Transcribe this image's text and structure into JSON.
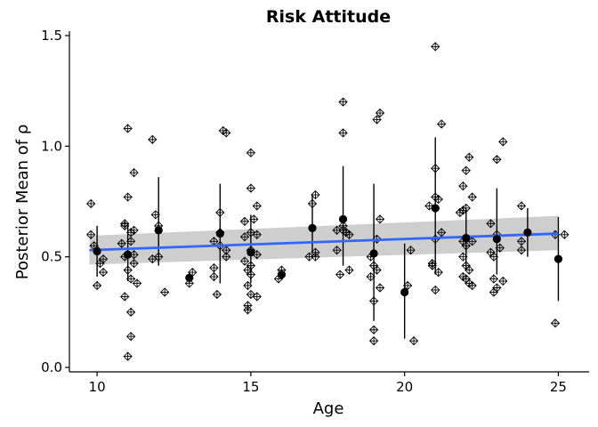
{
  "chart_data": {
    "type": "scatter",
    "title": "Risk Attitude",
    "xlabel": "Age",
    "ylabel": "Posterior Mean of ρ",
    "xlim": [
      9.1,
      26.0
    ],
    "ylim": [
      -0.02,
      1.52
    ],
    "xticks": [
      10,
      15,
      20,
      25
    ],
    "yticks": [
      0.0,
      0.5,
      1.0,
      1.5
    ],
    "xtick_labels": [
      "10",
      "15",
      "20",
      "25"
    ],
    "ytick_labels": [
      "0.0",
      "0.5",
      "1.0",
      "1.5"
    ],
    "grid": false,
    "legend": "none",
    "colors": {
      "trend_line": "#3366ff",
      "confidence_band": "#bdbdbd",
      "points": "#000000",
      "axis": "#000000"
    },
    "individual_points": [
      {
        "x": 9.8,
        "y": 0.74
      },
      {
        "x": 9.8,
        "y": 0.6
      },
      {
        "x": 9.9,
        "y": 0.55
      },
      {
        "x": 10.0,
        "y": 0.53
      },
      {
        "x": 10.0,
        "y": 0.37
      },
      {
        "x": 10.1,
        "y": 0.47
      },
      {
        "x": 10.2,
        "y": 0.43
      },
      {
        "x": 10.2,
        "y": 0.49
      },
      {
        "x": 10.8,
        "y": 0.56
      },
      {
        "x": 10.9,
        "y": 0.65
      },
      {
        "x": 10.9,
        "y": 0.64
      },
      {
        "x": 10.9,
        "y": 0.5
      },
      {
        "x": 10.9,
        "y": 0.32
      },
      {
        "x": 11.0,
        "y": 1.08
      },
      {
        "x": 11.0,
        "y": 0.77
      },
      {
        "x": 11.0,
        "y": 0.05
      },
      {
        "x": 11.0,
        "y": 0.44
      },
      {
        "x": 11.1,
        "y": 0.61
      },
      {
        "x": 11.1,
        "y": 0.57
      },
      {
        "x": 11.1,
        "y": 0.4
      },
      {
        "x": 11.1,
        "y": 0.25
      },
      {
        "x": 11.1,
        "y": 0.14
      },
      {
        "x": 11.2,
        "y": 0.88
      },
      {
        "x": 11.2,
        "y": 0.62
      },
      {
        "x": 11.2,
        "y": 0.51
      },
      {
        "x": 11.2,
        "y": 0.47
      },
      {
        "x": 11.3,
        "y": 0.38
      },
      {
        "x": 11.8,
        "y": 1.03
      },
      {
        "x": 11.8,
        "y": 0.49
      },
      {
        "x": 11.9,
        "y": 0.69
      },
      {
        "x": 12.0,
        "y": 0.64
      },
      {
        "x": 12.0,
        "y": 0.5
      },
      {
        "x": 12.2,
        "y": 0.34
      },
      {
        "x": 13.0,
        "y": 0.38
      },
      {
        "x": 13.1,
        "y": 0.43
      },
      {
        "x": 13.8,
        "y": 0.57
      },
      {
        "x": 13.8,
        "y": 0.45
      },
      {
        "x": 13.8,
        "y": 0.41
      },
      {
        "x": 13.9,
        "y": 0.33
      },
      {
        "x": 14.0,
        "y": 0.7
      },
      {
        "x": 14.0,
        "y": 0.61
      },
      {
        "x": 14.0,
        "y": 0.55
      },
      {
        "x": 14.1,
        "y": 1.07
      },
      {
        "x": 14.2,
        "y": 1.06
      },
      {
        "x": 14.2,
        "y": 0.53
      },
      {
        "x": 14.2,
        "y": 0.5
      },
      {
        "x": 14.8,
        "y": 0.66
      },
      {
        "x": 14.8,
        "y": 0.59
      },
      {
        "x": 14.8,
        "y": 0.48
      },
      {
        "x": 14.9,
        "y": 0.44
      },
      {
        "x": 14.9,
        "y": 0.37
      },
      {
        "x": 14.9,
        "y": 0.28
      },
      {
        "x": 14.9,
        "y": 0.26
      },
      {
        "x": 15.0,
        "y": 0.97
      },
      {
        "x": 15.0,
        "y": 0.81
      },
      {
        "x": 15.0,
        "y": 0.61
      },
      {
        "x": 15.0,
        "y": 0.53
      },
      {
        "x": 15.0,
        "y": 0.46
      },
      {
        "x": 15.0,
        "y": 0.42
      },
      {
        "x": 15.0,
        "y": 0.33
      },
      {
        "x": 15.1,
        "y": 0.67
      },
      {
        "x": 15.2,
        "y": 0.73
      },
      {
        "x": 15.2,
        "y": 0.6
      },
      {
        "x": 15.2,
        "y": 0.51
      },
      {
        "x": 15.2,
        "y": 0.32
      },
      {
        "x": 15.9,
        "y": 0.4
      },
      {
        "x": 16.0,
        "y": 0.44
      },
      {
        "x": 16.9,
        "y": 0.5
      },
      {
        "x": 17.0,
        "y": 0.74
      },
      {
        "x": 17.1,
        "y": 0.52
      },
      {
        "x": 17.1,
        "y": 0.5
      },
      {
        "x": 17.1,
        "y": 0.78
      },
      {
        "x": 17.8,
        "y": 0.62
      },
      {
        "x": 17.8,
        "y": 0.53
      },
      {
        "x": 17.9,
        "y": 0.42
      },
      {
        "x": 18.0,
        "y": 1.2
      },
      {
        "x": 18.0,
        "y": 1.06
      },
      {
        "x": 18.0,
        "y": 0.64
      },
      {
        "x": 18.0,
        "y": 0.62
      },
      {
        "x": 18.1,
        "y": 0.61
      },
      {
        "x": 18.2,
        "y": 0.6
      },
      {
        "x": 18.2,
        "y": 0.44
      },
      {
        "x": 18.9,
        "y": 0.5
      },
      {
        "x": 18.9,
        "y": 0.41
      },
      {
        "x": 19.0,
        "y": 0.46
      },
      {
        "x": 19.0,
        "y": 0.3
      },
      {
        "x": 19.0,
        "y": 0.17
      },
      {
        "x": 19.0,
        "y": 0.12
      },
      {
        "x": 19.1,
        "y": 0.58
      },
      {
        "x": 19.1,
        "y": 0.44
      },
      {
        "x": 19.1,
        "y": 1.12
      },
      {
        "x": 19.2,
        "y": 1.15
      },
      {
        "x": 19.2,
        "y": 0.67
      },
      {
        "x": 19.2,
        "y": 0.36
      },
      {
        "x": 20.1,
        "y": 0.37
      },
      {
        "x": 20.2,
        "y": 0.53
      },
      {
        "x": 20.3,
        "y": 0.12
      },
      {
        "x": 20.8,
        "y": 0.73
      },
      {
        "x": 20.9,
        "y": 0.47
      },
      {
        "x": 20.9,
        "y": 0.46
      },
      {
        "x": 21.0,
        "y": 1.45
      },
      {
        "x": 21.0,
        "y": 0.9
      },
      {
        "x": 21.0,
        "y": 0.77
      },
      {
        "x": 21.0,
        "y": 0.35
      },
      {
        "x": 21.0,
        "y": 0.58
      },
      {
        "x": 21.0,
        "y": 0.72
      },
      {
        "x": 21.1,
        "y": 0.76
      },
      {
        "x": 21.1,
        "y": 0.43
      },
      {
        "x": 21.2,
        "y": 1.1
      },
      {
        "x": 21.2,
        "y": 0.61
      },
      {
        "x": 21.8,
        "y": 0.7
      },
      {
        "x": 21.9,
        "y": 0.82
      },
      {
        "x": 21.9,
        "y": 0.71
      },
      {
        "x": 21.9,
        "y": 0.57
      },
      {
        "x": 21.9,
        "y": 0.5
      },
      {
        "x": 21.9,
        "y": 0.41
      },
      {
        "x": 22.0,
        "y": 0.89
      },
      {
        "x": 22.0,
        "y": 0.72
      },
      {
        "x": 22.0,
        "y": 0.55
      },
      {
        "x": 22.0,
        "y": 0.46
      },
      {
        "x": 22.0,
        "y": 0.4
      },
      {
        "x": 22.1,
        "y": 0.95
      },
      {
        "x": 22.1,
        "y": 0.44
      },
      {
        "x": 22.1,
        "y": 0.38
      },
      {
        "x": 22.2,
        "y": 0.77
      },
      {
        "x": 22.2,
        "y": 0.57
      },
      {
        "x": 22.2,
        "y": 0.37
      },
      {
        "x": 22.8,
        "y": 0.65
      },
      {
        "x": 22.8,
        "y": 0.52
      },
      {
        "x": 22.9,
        "y": 0.5
      },
      {
        "x": 22.9,
        "y": 0.4
      },
      {
        "x": 22.9,
        "y": 0.34
      },
      {
        "x": 23.0,
        "y": 0.94
      },
      {
        "x": 23.0,
        "y": 0.6
      },
      {
        "x": 23.0,
        "y": 0.36
      },
      {
        "x": 23.1,
        "y": 0.54
      },
      {
        "x": 23.2,
        "y": 1.02
      },
      {
        "x": 23.2,
        "y": 0.39
      },
      {
        "x": 23.8,
        "y": 0.73
      },
      {
        "x": 23.8,
        "y": 0.57
      },
      {
        "x": 23.8,
        "y": 0.53
      },
      {
        "x": 24.9,
        "y": 0.6
      },
      {
        "x": 24.9,
        "y": 0.2
      },
      {
        "x": 25.2,
        "y": 0.6
      }
    ],
    "age_means": [
      {
        "x": 10,
        "y": 0.525,
        "lo": 0.41,
        "hi": 0.64
      },
      {
        "x": 11,
        "y": 0.51,
        "lo": 0.39,
        "hi": 0.65
      },
      {
        "x": 12,
        "y": 0.62,
        "lo": 0.46,
        "hi": 0.86
      },
      {
        "x": 13,
        "y": 0.405,
        "lo": 0.38,
        "hi": 0.43
      },
      {
        "x": 14,
        "y": 0.605,
        "lo": 0.38,
        "hi": 0.83
      },
      {
        "x": 15,
        "y": 0.52,
        "lo": 0.38,
        "hi": 0.69
      },
      {
        "x": 16,
        "y": 0.42,
        "lo": 0.4,
        "hi": 0.44
      },
      {
        "x": 17,
        "y": 0.63,
        "lo": 0.52,
        "hi": 0.78
      },
      {
        "x": 18,
        "y": 0.67,
        "lo": 0.46,
        "hi": 0.91
      },
      {
        "x": 19,
        "y": 0.515,
        "lo": 0.21,
        "hi": 0.83
      },
      {
        "x": 20,
        "y": 0.34,
        "lo": 0.13,
        "hi": 0.56
      },
      {
        "x": 21,
        "y": 0.72,
        "lo": 0.42,
        "hi": 1.04
      },
      {
        "x": 22,
        "y": 0.585,
        "lo": 0.44,
        "hi": 0.71
      },
      {
        "x": 23,
        "y": 0.58,
        "lo": 0.42,
        "hi": 0.81
      },
      {
        "x": 24,
        "y": 0.61,
        "lo": 0.5,
        "hi": 0.72
      },
      {
        "x": 25,
        "y": 0.49,
        "lo": 0.3,
        "hi": 0.68
      }
    ],
    "trend": {
      "x": [
        9.75,
        25.0
      ],
      "y": [
        0.53,
        0.605
      ],
      "ci_lower": [
        0.465,
        0.53
      ],
      "ci_upper": [
        0.595,
        0.685
      ]
    }
  }
}
